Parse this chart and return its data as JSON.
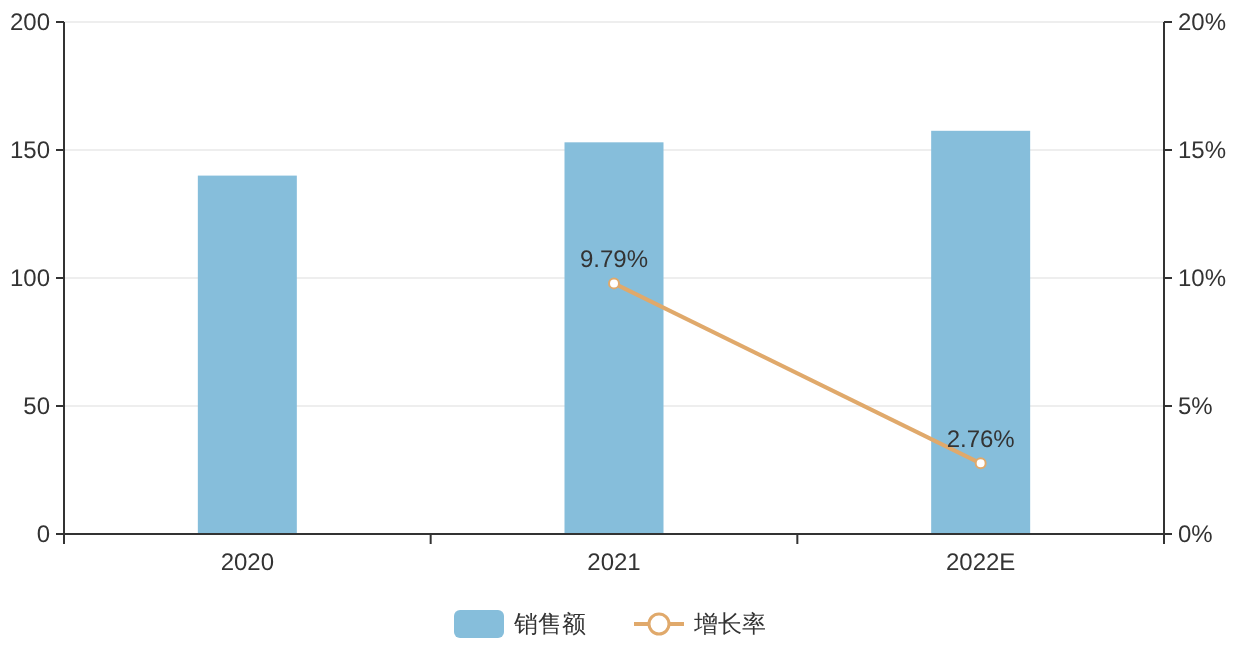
{
  "chart_data": {
    "type": "bar",
    "categories": [
      "2020",
      "2021",
      "2022E"
    ],
    "series": [
      {
        "name": "销售额",
        "color": "#86bedb",
        "values": [
          140,
          153,
          157.5
        ]
      },
      {
        "name": "增长率",
        "type": "line",
        "axis": "y2",
        "color": "#e0a96b",
        "marker": "circle",
        "values": [
          null,
          9.79,
          2.76
        ],
        "value_labels": [
          null,
          "9.79%",
          "2.76%"
        ]
      }
    ],
    "ylim": [
      0,
      200
    ],
    "yticks": [
      0,
      50,
      100,
      150,
      200
    ],
    "y2lim": [
      0,
      20
    ],
    "y2ticks": [
      {
        "value": 0,
        "label": "0%"
      },
      {
        "value": 5,
        "label": "5%"
      },
      {
        "value": 10,
        "label": "10%"
      },
      {
        "value": 15,
        "label": "15%"
      },
      {
        "value": 20,
        "label": "20%"
      }
    ],
    "grid": "y",
    "legend": "bottom"
  }
}
